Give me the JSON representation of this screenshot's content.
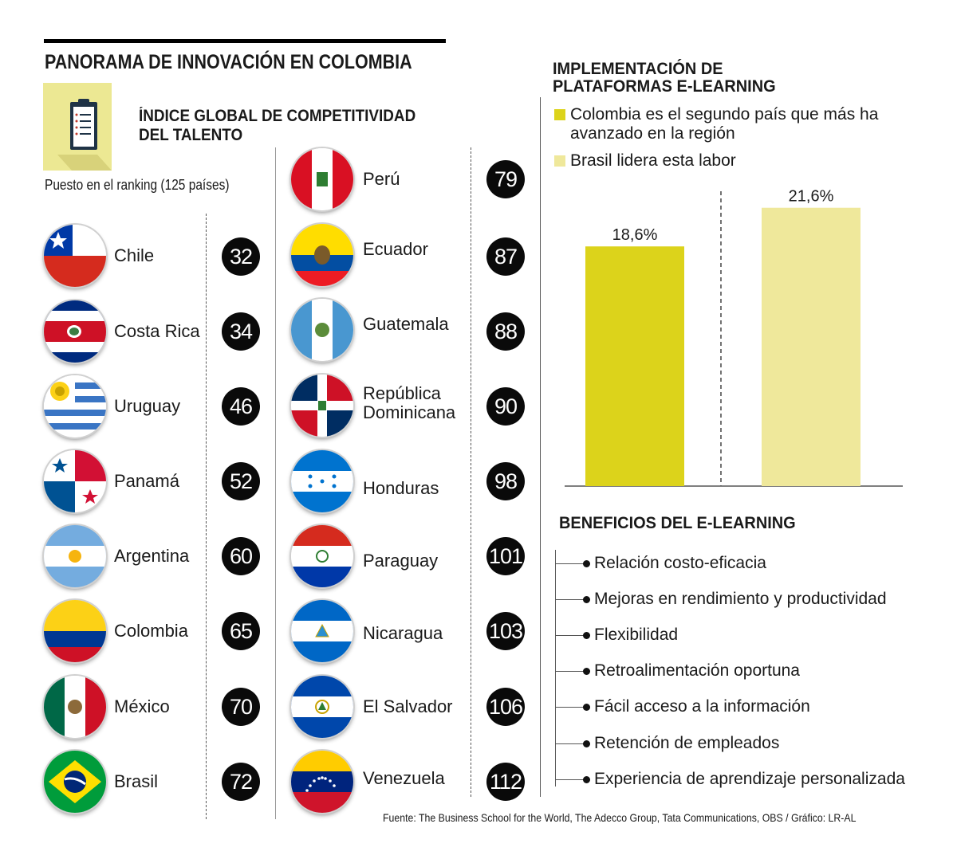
{
  "header": {
    "title": "PANORAMA DE INNOVACIÓN EN COLOMBIA",
    "subtitle_line1": "ÍNDICE GLOBAL DE COMPETITIVIDAD",
    "subtitle_line2": "DEL TALENTO",
    "ranking_label": "Puesto en el ranking (125 países)"
  },
  "ranking": {
    "left": [
      {
        "name": "Chile",
        "rank": "32",
        "flag": "chile-flag"
      },
      {
        "name": "Costa Rica",
        "rank": "34",
        "flag": "costa-rica-flag"
      },
      {
        "name": "Uruguay",
        "rank": "46",
        "flag": "uruguay-flag"
      },
      {
        "name": "Panamá",
        "rank": "52",
        "flag": "panama-flag"
      },
      {
        "name": "Argentina",
        "rank": "60",
        "flag": "argentina-flag"
      },
      {
        "name": "Colombia",
        "rank": "65",
        "flag": "colombia-flag"
      },
      {
        "name": "México",
        "rank": "70",
        "flag": "mexico-flag"
      },
      {
        "name": "Brasil",
        "rank": "72",
        "flag": "brasil-flag"
      }
    ],
    "right": [
      {
        "name": "Perú",
        "rank": "79",
        "flag": "peru-flag"
      },
      {
        "name": "Ecuador",
        "rank": "87",
        "flag": "ecuador-flag"
      },
      {
        "name": "Guatemala",
        "rank": "88",
        "flag": "guatemala-flag"
      },
      {
        "name": "República",
        "name2": "Dominicana",
        "rank": "90",
        "flag": "republica-dominicana-flag"
      },
      {
        "name": "Honduras",
        "rank": "98",
        "flag": "honduras-flag"
      },
      {
        "name": "Paraguay",
        "rank": "101",
        "flag": "paraguay-flag"
      },
      {
        "name": "Nicaragua",
        "rank": "103",
        "flag": "nicaragua-flag"
      },
      {
        "name": "El Salvador",
        "rank": "106",
        "flag": "el-salvador-flag"
      },
      {
        "name": "Venezuela",
        "rank": "112",
        "flag": "venezuela-flag"
      }
    ]
  },
  "elearning": {
    "title_line1": "IMPLEMENTACIÓN DE",
    "title_line2": "PLATAFORMAS E-LEARNING",
    "legend_colombia": "Colombia es el segundo país que más ha avanzado en la región",
    "legend_brasil": "Brasil lidera esta labor"
  },
  "chart_data": {
    "type": "bar",
    "categories": [
      "Colombia",
      "Brasil"
    ],
    "values": [
      18.6,
      21.6
    ],
    "data_labels": [
      "18,6%",
      "21,6%"
    ],
    "colors": [
      "#dcd31b",
      "#efe89b"
    ],
    "title": "IMPLEMENTACIÓN DE PLATAFORMAS E-LEARNING",
    "ylim": [
      0,
      23.5
    ],
    "grid": false
  },
  "benefits": {
    "title": "BENEFICIOS DEL E-LEARNING",
    "items": [
      "Relación costo-eficacia",
      "Mejoras en rendimiento y productividad",
      "Flexibilidad",
      "Retroalimentación oportuna",
      "Fácil acceso a la información",
      "Retención de empleados",
      "Experiencia de aprendizaje personalizada"
    ]
  },
  "source": "Fuente: The Business School for the World, The Adecco Group, Tata Communications, OBS / Gráfico: LR-AL",
  "colors": {
    "accent_dark_yellow": "#dcd31b",
    "accent_light_yellow": "#efe89b",
    "icon_background": "#ece893",
    "badge": "#0a0a0a"
  }
}
